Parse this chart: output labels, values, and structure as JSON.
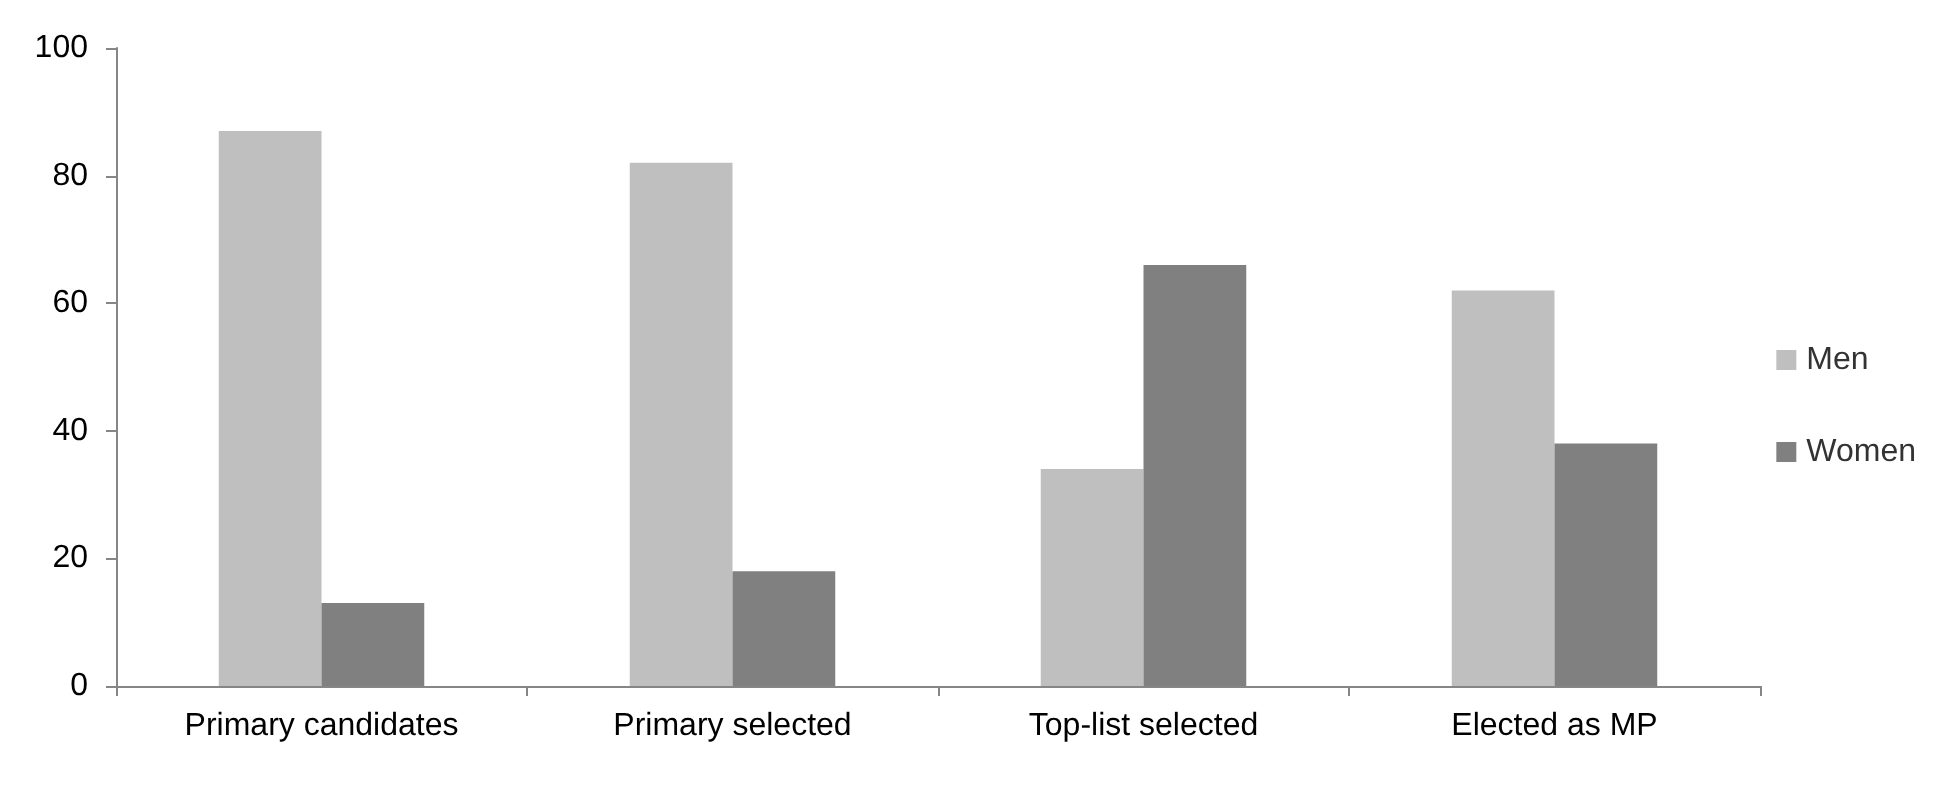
{
  "chart_data": {
    "type": "bar",
    "categories": [
      "Primary candidates",
      "Primary selected",
      "Top-list selected",
      "Elected as MP"
    ],
    "series": [
      {
        "name": "Men",
        "color": "#bfbfbf",
        "values": [
          87,
          82,
          34,
          62
        ]
      },
      {
        "name": "Women",
        "color": "#808080",
        "values": [
          13,
          18,
          66,
          38
        ]
      }
    ],
    "ylim": [
      0,
      100
    ],
    "yticks": [
      0,
      20,
      40,
      60,
      80,
      100
    ],
    "grid": false,
    "legend": "right"
  }
}
